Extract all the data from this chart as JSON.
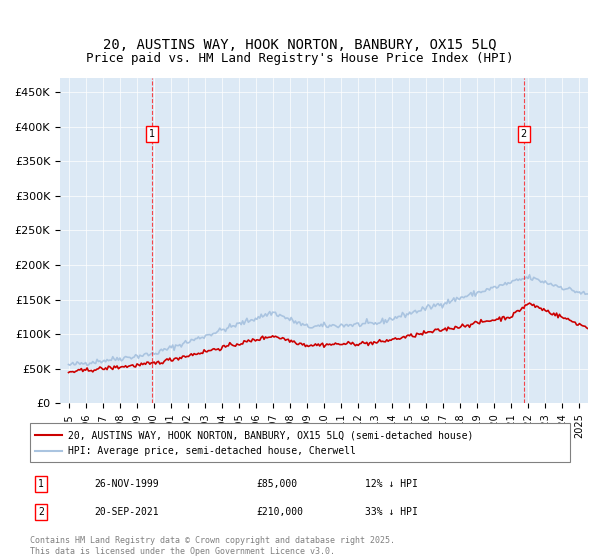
{
  "title": "20, AUSTINS WAY, HOOK NORTON, BANBURY, OX15 5LQ",
  "subtitle": "Price paid vs. HM Land Registry's House Price Index (HPI)",
  "ylabel_ticks": [
    "£0",
    "£50K",
    "£100K",
    "£150K",
    "£200K",
    "£250K",
    "£300K",
    "£350K",
    "£400K",
    "£450K"
  ],
  "ytick_values": [
    0,
    50000,
    100000,
    150000,
    200000,
    250000,
    300000,
    350000,
    400000,
    450000
  ],
  "ylim": [
    0,
    470000
  ],
  "xlim_start": 1994.5,
  "xlim_end": 2025.5,
  "background_color": "#dce9f5",
  "plot_bg": "#dce9f5",
  "hpi_color": "#aac4e0",
  "price_color": "#cc0000",
  "marker1_x": 1999.9,
  "marker1_y": 85000,
  "marker2_x": 2021.72,
  "marker2_y": 210000,
  "legend_label1": "20, AUSTINS WAY, HOOK NORTON, BANBURY, OX15 5LQ (semi-detached house)",
  "legend_label2": "HPI: Average price, semi-detached house, Cherwell",
  "note1_label": "1",
  "note1_date": "26-NOV-1999",
  "note1_price": "£85,000",
  "note1_hpi": "12% ↓ HPI",
  "note2_label": "2",
  "note2_date": "20-SEP-2021",
  "note2_price": "£210,000",
  "note2_hpi": "33% ↓ HPI",
  "footer": "Contains HM Land Registry data © Crown copyright and database right 2025.\nThis data is licensed under the Open Government Licence v3.0.",
  "title_fontsize": 10,
  "subtitle_fontsize": 9
}
